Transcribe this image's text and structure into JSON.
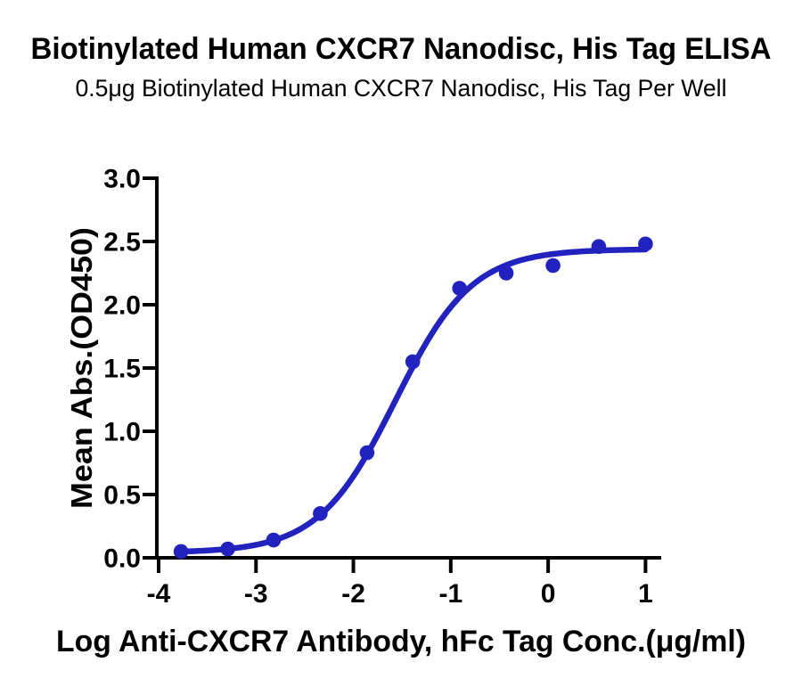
{
  "title": "Biotinylated Human CXCR7 Nanodisc, His Tag ELISA",
  "subtitle": "0.5μg Biotinylated Human CXCR7 Nanodisc, His Tag Per Well",
  "colors": {
    "accent_blue": "#2222BE",
    "axis": "#000000",
    "text": "#000000",
    "background": "#FFFFFF"
  },
  "chart_data": {
    "type": "scatter",
    "title": "Biotinylated Human CXCR7 Nanodisc, His Tag ELISA",
    "subtitle": "0.5μg Biotinylated Human CXCR7 Nanodisc, His Tag Per Well",
    "xlabel": "Log Anti-CXCR7 Antibody, hFc Tag Conc.(μg/ml)",
    "ylabel": "Mean Abs.(OD450)",
    "x": [
      -3.77,
      -3.29,
      -2.82,
      -2.34,
      -1.86,
      -1.39,
      -0.91,
      -0.43,
      0.05,
      0.52,
      1.0
    ],
    "y": [
      0.05,
      0.07,
      0.14,
      0.35,
      0.83,
      1.55,
      2.13,
      2.25,
      2.31,
      2.46,
      2.48
    ],
    "fit_curve": {
      "model": "4PL",
      "bottom": 0.04,
      "top": 2.44,
      "logEC50": -1.57,
      "hillslope": 1.1
    },
    "xlim": [
      -4,
      1
    ],
    "ylim": [
      0,
      3
    ],
    "xticks": [
      -4,
      -3,
      -2,
      -1,
      0,
      1
    ],
    "xtick_labels": [
      "-4",
      "-3",
      "-2",
      "-1",
      "0",
      "1"
    ],
    "yticks": [
      0,
      0.5,
      1,
      1.5,
      2,
      2.5,
      3
    ],
    "ytick_labels": [
      "0.0",
      "0.5",
      "1.0",
      "1.5",
      "2.0",
      "2.5",
      "3.0"
    ],
    "grid": false,
    "legend": false,
    "line_color": "#2222BE",
    "marker_color": "#2222BE",
    "marker_size": 8.3,
    "line_width": 6.5
  }
}
